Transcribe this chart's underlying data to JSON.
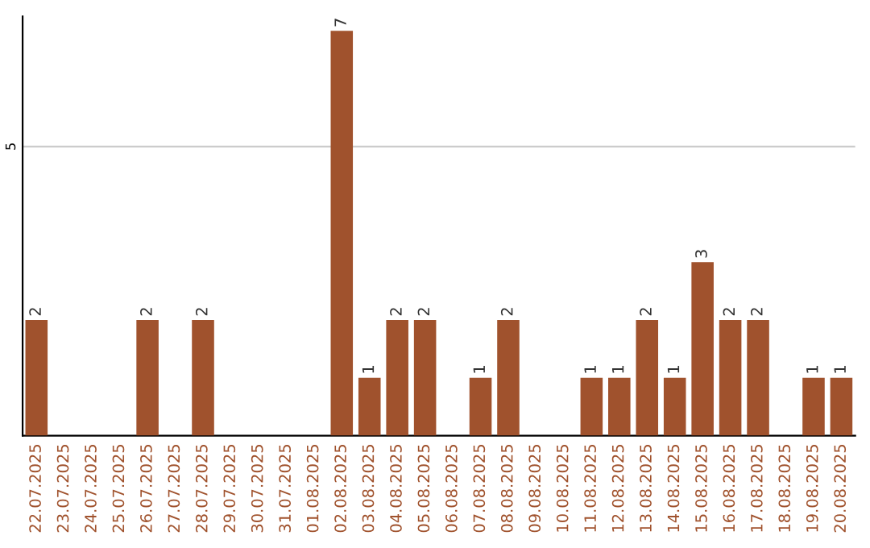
{
  "chart_data": {
    "type": "bar",
    "categories": [
      "22.07.2025",
      "23.07.2025",
      "24.07.2025",
      "25.07.2025",
      "26.07.2025",
      "27.07.2025",
      "28.07.2025",
      "29.07.2025",
      "30.07.2025",
      "31.07.2025",
      "01.08.2025",
      "02.08.2025",
      "03.08.2025",
      "04.08.2025",
      "05.08.2025",
      "06.08.2025",
      "07.08.2025",
      "08.08.2025",
      "09.08.2025",
      "10.08.2025",
      "11.08.2025",
      "12.08.2025",
      "13.08.2025",
      "14.08.2025",
      "15.08.2025",
      "16.08.2025",
      "17.08.2025",
      "18.08.2025",
      "19.08.2025",
      "20.08.2025"
    ],
    "values": [
      2,
      0,
      0,
      0,
      2,
      0,
      2,
      0,
      0,
      0,
      0,
      7,
      1,
      2,
      2,
      0,
      1,
      2,
      0,
      0,
      1,
      1,
      2,
      1,
      3,
      2,
      2,
      0,
      1,
      1
    ],
    "value_labels": [
      "2",
      null,
      null,
      null,
      "2",
      null,
      "2",
      null,
      null,
      null,
      null,
      "7",
      "1",
      "2",
      "2",
      null,
      "1",
      "2",
      null,
      null,
      "1",
      "1",
      "2",
      "1",
      "3",
      "2",
      "2",
      null,
      "1",
      "1"
    ],
    "color": "#a0522d",
    "ylim": [
      0,
      7.25
    ],
    "yticks": [
      5
    ],
    "grid": "y",
    "legend": false
  }
}
